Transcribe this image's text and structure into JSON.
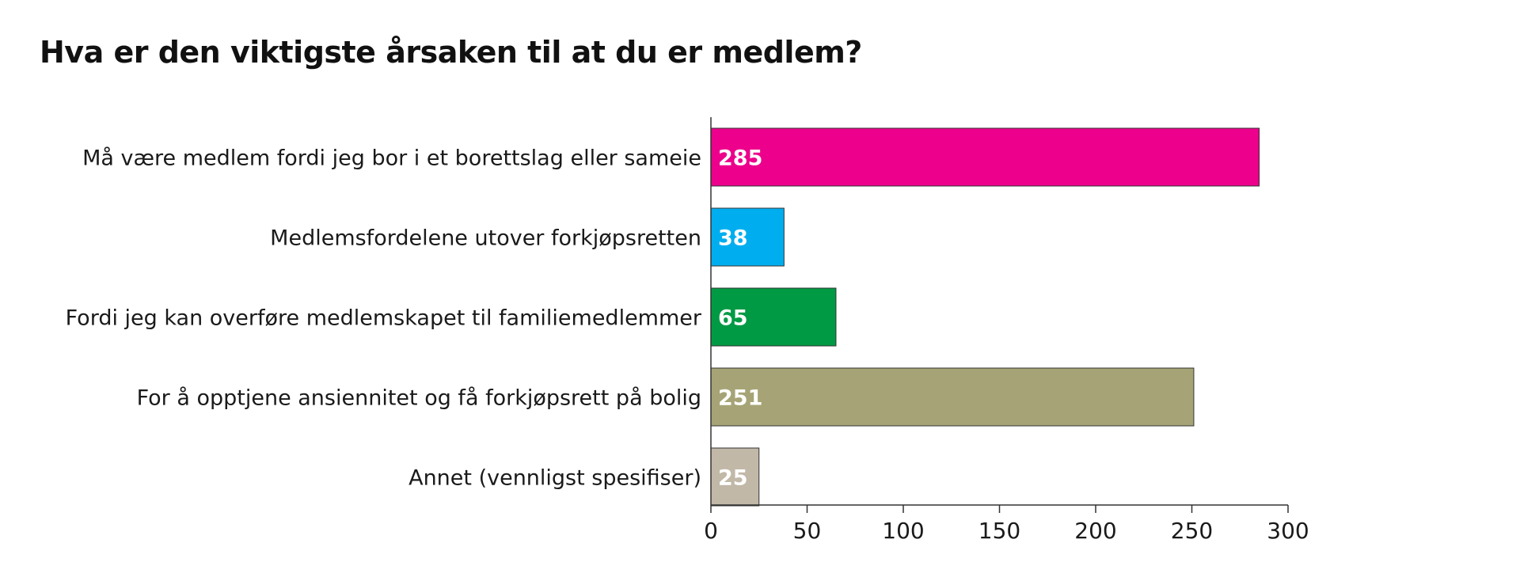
{
  "chart_data": {
    "type": "bar",
    "orientation": "horizontal",
    "title": "Hva er den viktigste årsaken til at du er medlem?",
    "categories": [
      "Må være medlem fordi jeg bor i et borettslag eller sameie",
      "Medlemsfordelene utover forkjøpsretten",
      "Fordi jeg kan overføre medlemskapet til familiemedlemmer",
      "For å opptjene ansiennitet og få forkjøpsrett på bolig",
      "Annet (vennligst spesifiser)"
    ],
    "values": [
      285,
      38,
      65,
      251,
      25
    ],
    "value_labels": [
      "285",
      "38",
      "65",
      "251",
      "25"
    ],
    "colors": [
      "#ec008c",
      "#00aeef",
      "#009a44",
      "#a6a476",
      "#c2b8a8"
    ],
    "xlim": [
      0,
      300
    ],
    "ticks": [
      0,
      50,
      100,
      150,
      200,
      250,
      300
    ],
    "tick_labels": [
      "0",
      "50",
      "100",
      "150",
      "200",
      "250",
      "300"
    ],
    "grid": false,
    "legend": "none"
  }
}
